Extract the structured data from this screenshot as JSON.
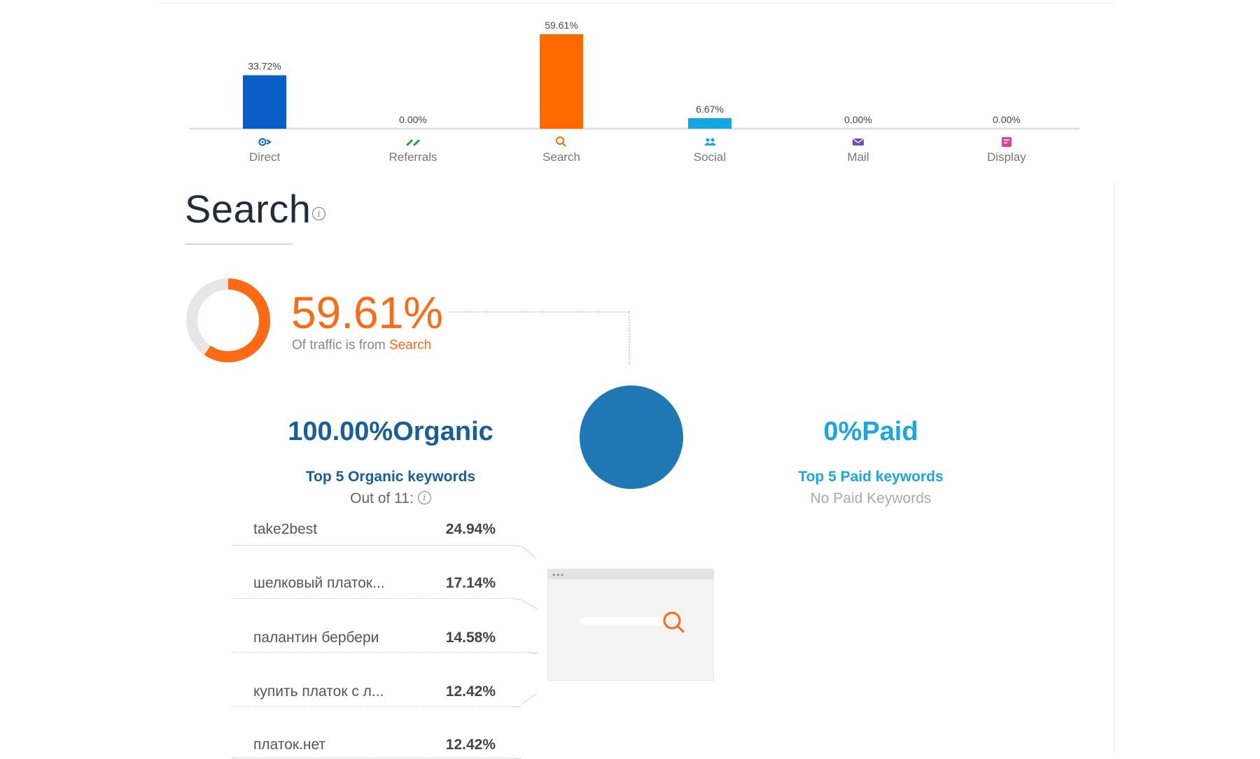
{
  "chart_data": {
    "type": "bar",
    "categories": [
      "Direct",
      "Referrals",
      "Search",
      "Social",
      "Mail",
      "Display"
    ],
    "values": [
      33.72,
      0.0,
      59.61,
      6.67,
      0.0,
      0.0
    ],
    "value_labels": [
      "33.72%",
      "0.00%",
      "59.61%",
      "6.67%",
      "0.00%",
      "0.00%"
    ],
    "colors": [
      "#0a5ec8",
      "#2aa12a",
      "#ff6a00",
      "#14a6e0",
      "#6b4fbb",
      "#e0409a"
    ],
    "icons": [
      "direct-icon",
      "referrals-icon",
      "search-icon",
      "social-icon",
      "mail-icon",
      "display-icon"
    ],
    "ylim": [
      0,
      60
    ],
    "title": "",
    "xlabel": "",
    "ylabel": "",
    "grid": false
  },
  "search_section": {
    "title": "Search",
    "share_percent": "59.61%",
    "share_value": 59.61,
    "traffic_prefix": "Of traffic is from",
    "traffic_source": "Search"
  },
  "organic": {
    "headline_pct": "100.00%",
    "headline_label": "Organic",
    "keywords_title": "Top 5 Organic keywords",
    "out_of": "Out of 11:",
    "keywords": [
      {
        "keyword": "take2best",
        "share": "24.94%"
      },
      {
        "keyword": "шелковый платок...",
        "share": "17.14%"
      },
      {
        "keyword": "палантин бербери",
        "share": "14.58%"
      },
      {
        "keyword": "купить платок с л...",
        "share": "12.42%"
      },
      {
        "keyword": "платок.нет",
        "share": "12.42%"
      }
    ]
  },
  "paid": {
    "headline_pct": "0%",
    "headline_label": "Paid",
    "keywords_title": "Top 5 Paid keywords",
    "empty_text": "No Paid Keywords"
  },
  "colors": {
    "accent_orange": "#ff6a13",
    "organic_blue": "#185e97",
    "paid_blue": "#1ca6e0",
    "circle_blue": "#1f78b4"
  }
}
